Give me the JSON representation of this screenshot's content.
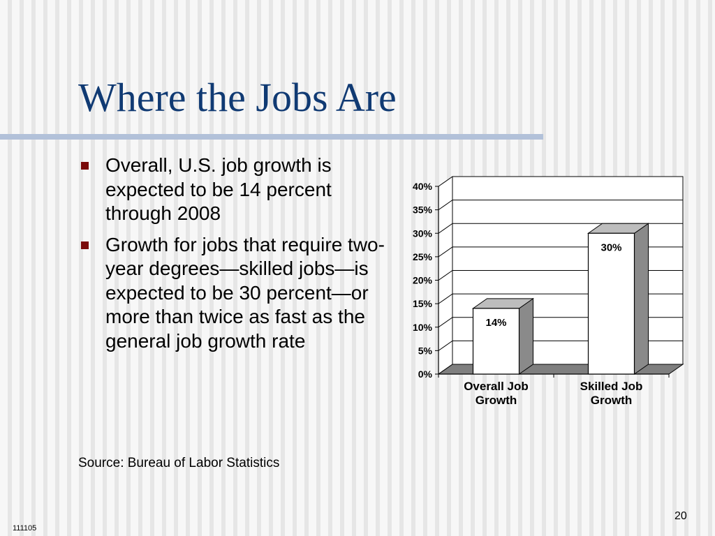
{
  "slide": {
    "title": "Where the Jobs Are",
    "bullets": [
      "Overall, U.S. job growth is expected to be 14 percent through 2008",
      "Growth for jobs that require two-year degrees—skilled jobs—is expected to be 30 percent—or more than twice as fast as the general job growth rate"
    ],
    "source": "Source: Bureau of Labor Statistics",
    "page_number": "20",
    "slide_code": "111105"
  },
  "chart_data": {
    "type": "bar",
    "categories": [
      "Overall Job Growth",
      "Skilled Job Growth"
    ],
    "values": [
      14,
      30
    ],
    "data_labels": [
      "14%",
      "30%"
    ],
    "ylim": [
      0,
      40
    ],
    "yticks": [
      0,
      5,
      10,
      15,
      20,
      25,
      30,
      35,
      40
    ],
    "ytick_labels": [
      "0%",
      "5%",
      "10%",
      "15%",
      "20%",
      "25%",
      "30%",
      "35%",
      "40%"
    ],
    "grid": true,
    "three_d": true,
    "colors": {
      "bar": "#ffffff",
      "bar_side": "#8a8a8a",
      "floor": "#7f7f7f",
      "wall": "#ffffff",
      "outline": "#000000"
    }
  }
}
